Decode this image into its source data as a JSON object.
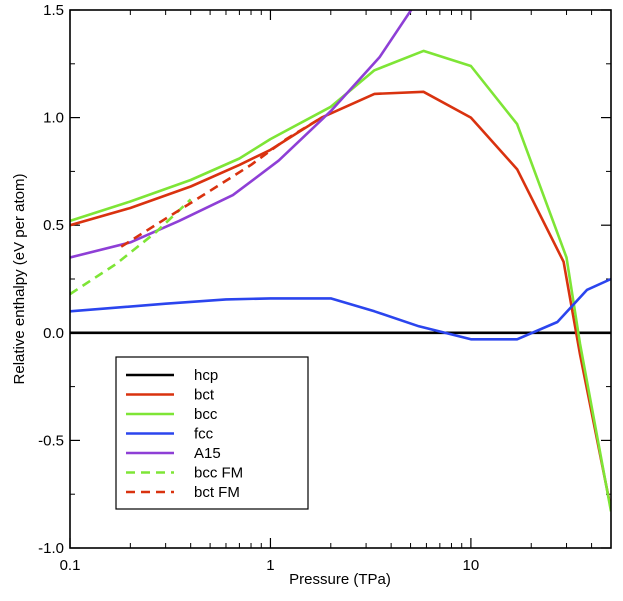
{
  "chart_data": {
    "type": "line",
    "title": "",
    "xlabel": "Pressure (TPa)",
    "ylabel": "Relative enthalpy (eV per atom)",
    "xscale": "log",
    "xlim": [
      0.1,
      50
    ],
    "ylim": [
      -1.0,
      1.5
    ],
    "x_ticks": [
      0.1,
      1,
      10
    ],
    "x_tick_labels": [
      "0.1",
      "1",
      "10"
    ],
    "y_ticks": [
      -1.0,
      -0.5,
      0.0,
      0.5,
      1.0,
      1.5
    ],
    "y_tick_labels": [
      "-1.0",
      "-0.5",
      "0.0",
      "0.5",
      "1.0",
      "1.5"
    ],
    "legend_position": "bottom-left",
    "series": [
      {
        "name": "hcp",
        "color": "#000000",
        "dash": "solid",
        "x": [
          0.1,
          50
        ],
        "y": [
          0.0,
          0.0
        ]
      },
      {
        "name": "bct",
        "color": "#d9320f",
        "dash": "solid",
        "x": [
          0.1,
          0.2,
          0.4,
          0.7,
          1.0,
          1.8,
          3.3,
          5.8,
          10,
          17,
          29,
          35,
          50
        ],
        "y": [
          0.5,
          0.58,
          0.68,
          0.78,
          0.85,
          1.0,
          1.11,
          1.12,
          1.0,
          0.76,
          0.33,
          -0.1,
          -0.82
        ]
      },
      {
        "name": "bcc",
        "color": "#7ee536",
        "dash": "solid",
        "x": [
          0.1,
          0.2,
          0.4,
          0.7,
          1.0,
          2.0,
          3.3,
          5.8,
          10,
          17,
          30,
          35,
          50
        ],
        "y": [
          0.52,
          0.61,
          0.71,
          0.81,
          0.9,
          1.05,
          1.22,
          1.31,
          1.24,
          0.97,
          0.35,
          -0.05,
          -0.83
        ]
      },
      {
        "name": "fcc",
        "color": "#2b45ee",
        "dash": "solid",
        "x": [
          0.1,
          0.3,
          0.6,
          1.0,
          1.4,
          2.0,
          3.3,
          5.5,
          10,
          17,
          27,
          38,
          50
        ],
        "y": [
          0.1,
          0.135,
          0.155,
          0.16,
          0.16,
          0.16,
          0.1,
          0.03,
          -0.03,
          -0.03,
          0.05,
          0.2,
          0.25
        ]
      },
      {
        "name": "A15",
        "color": "#8e3fd6",
        "dash": "solid",
        "x": [
          0.1,
          0.2,
          0.35,
          0.65,
          1.1,
          2.0,
          3.5,
          5.2
        ],
        "y": [
          0.35,
          0.42,
          0.52,
          0.64,
          0.8,
          1.03,
          1.28,
          1.52
        ]
      },
      {
        "name": "bcc FM",
        "color": "#7ee536",
        "dash": "dashed",
        "x": [
          0.1,
          0.17,
          0.27,
          0.4
        ],
        "y": [
          0.18,
          0.32,
          0.47,
          0.62
        ]
      },
      {
        "name": "bct FM",
        "color": "#d9320f",
        "dash": "dashed",
        "x": [
          0.18,
          0.3,
          0.5,
          0.8,
          1.2,
          1.8
        ],
        "y": [
          0.4,
          0.53,
          0.66,
          0.78,
          0.9,
          1.0
        ]
      }
    ]
  }
}
